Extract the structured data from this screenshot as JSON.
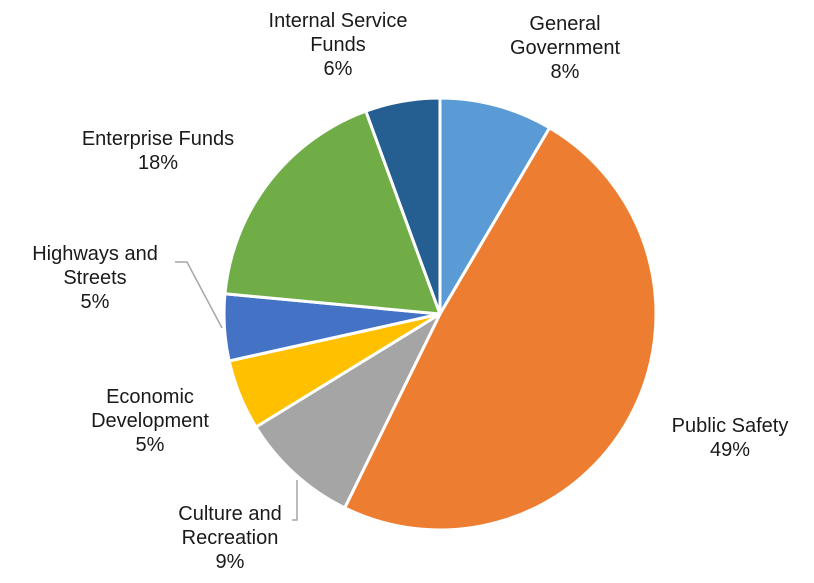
{
  "chart_data": {
    "type": "pie",
    "title": "",
    "slices": [
      {
        "label_lines": [
          "General",
          "Government"
        ],
        "percent_label": "8%",
        "value": 8.5,
        "color": "#5B9BD5"
      },
      {
        "label_lines": [
          "Public Safety"
        ],
        "percent_label": "49%",
        "value": 49,
        "color": "#ED7D31"
      },
      {
        "label_lines": [
          "Culture and",
          "Recreation"
        ],
        "percent_label": "9%",
        "value": 9,
        "color": "#A5A5A5"
      },
      {
        "label_lines": [
          "Economic",
          "Development"
        ],
        "percent_label": "5%",
        "value": 5.3,
        "color": "#FFC000"
      },
      {
        "label_lines": [
          "Highways and",
          "Streets"
        ],
        "percent_label": "5%",
        "value": 5,
        "color": "#4472C4"
      },
      {
        "label_lines": [
          "Enterprise Funds"
        ],
        "percent_label": "18%",
        "value": 18,
        "color": "#70AD47"
      },
      {
        "label_lines": [
          "Internal Service",
          "Funds"
        ],
        "percent_label": "6%",
        "value": 5.6,
        "color": "#255E91"
      }
    ],
    "start_angle_deg": 0,
    "direction": "clockwise",
    "legend": "none",
    "data_labels": "outside with leader lines"
  }
}
